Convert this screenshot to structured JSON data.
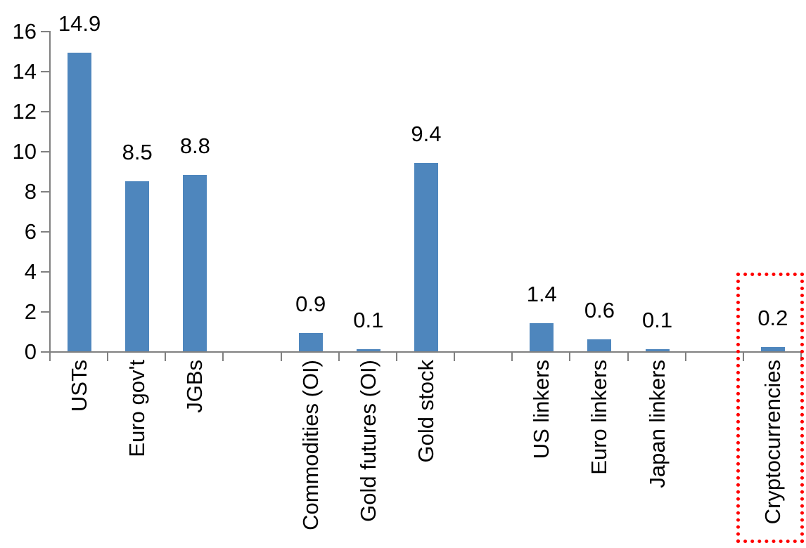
{
  "chart_data": {
    "type": "bar",
    "title": "",
    "xlabel": "",
    "ylabel": "",
    "categories": [
      "USTs",
      "Euro gov't",
      "JGBs",
      "Commodities (OI)",
      "Gold futures (OI)",
      "Gold stock",
      "US linkers",
      "Euro linkers",
      "Japan linkers",
      "Cryptocurrencies"
    ],
    "values": [
      14.9,
      8.5,
      8.8,
      0.9,
      0.1,
      9.4,
      1.4,
      0.6,
      0.1,
      0.2
    ],
    "data_labels": [
      "14.9",
      "8.5",
      "8.8",
      "0.9",
      "0.1",
      "9.4",
      "1.4",
      "0.6",
      "0.1",
      "0.2"
    ],
    "slots": [
      0,
      1,
      2,
      4,
      5,
      6,
      8,
      9,
      10,
      12
    ],
    "total_slots": 13,
    "ylim": [
      0,
      16
    ],
    "ytick_step": 2,
    "yticks": [
      0,
      2,
      4,
      6,
      8,
      10,
      12,
      14,
      16
    ],
    "grid": false,
    "legend": false,
    "bar_color": "#4E86BD",
    "axis_color": "#808080",
    "label_color": "#000000",
    "highlight": {
      "category": "Cryptocurrencies",
      "style": "red-dotted-box",
      "color": "#FF0000"
    }
  }
}
